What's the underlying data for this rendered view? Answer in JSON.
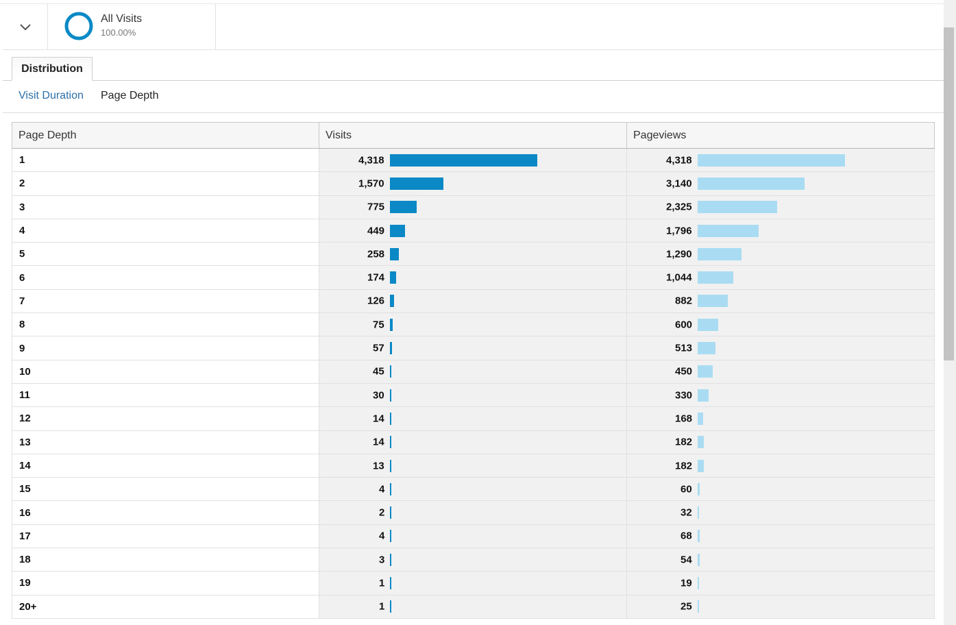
{
  "segment": {
    "name": "All Visits",
    "percent": "100.00%"
  },
  "tab": {
    "label": "Distribution"
  },
  "subtabs": {
    "visit_duration": "Visit Duration",
    "page_depth": "Page Depth"
  },
  "colors": {
    "visits_bar": "#0a89c6",
    "pageviews_bar": "#a9dcf2",
    "donut": "#0a89c6",
    "link": "#2c6fa8"
  },
  "table": {
    "headers": [
      "Page Depth",
      "Visits",
      "Pageviews"
    ],
    "max_value": 4318,
    "rows": [
      {
        "depth": "1",
        "visits": 4318,
        "visits_label": "4,318",
        "pageviews": 4318,
        "pageviews_label": "4,318"
      },
      {
        "depth": "2",
        "visits": 1570,
        "visits_label": "1,570",
        "pageviews": 3140,
        "pageviews_label": "3,140"
      },
      {
        "depth": "3",
        "visits": 775,
        "visits_label": "775",
        "pageviews": 2325,
        "pageviews_label": "2,325"
      },
      {
        "depth": "4",
        "visits": 449,
        "visits_label": "449",
        "pageviews": 1796,
        "pageviews_label": "1,796"
      },
      {
        "depth": "5",
        "visits": 258,
        "visits_label": "258",
        "pageviews": 1290,
        "pageviews_label": "1,290"
      },
      {
        "depth": "6",
        "visits": 174,
        "visits_label": "174",
        "pageviews": 1044,
        "pageviews_label": "1,044"
      },
      {
        "depth": "7",
        "visits": 126,
        "visits_label": "126",
        "pageviews": 882,
        "pageviews_label": "882"
      },
      {
        "depth": "8",
        "visits": 75,
        "visits_label": "75",
        "pageviews": 600,
        "pageviews_label": "600"
      },
      {
        "depth": "9",
        "visits": 57,
        "visits_label": "57",
        "pageviews": 513,
        "pageviews_label": "513"
      },
      {
        "depth": "10",
        "visits": 45,
        "visits_label": "45",
        "pageviews": 450,
        "pageviews_label": "450"
      },
      {
        "depth": "11",
        "visits": 30,
        "visits_label": "30",
        "pageviews": 330,
        "pageviews_label": "330"
      },
      {
        "depth": "12",
        "visits": 14,
        "visits_label": "14",
        "pageviews": 168,
        "pageviews_label": "168"
      },
      {
        "depth": "13",
        "visits": 14,
        "visits_label": "14",
        "pageviews": 182,
        "pageviews_label": "182"
      },
      {
        "depth": "14",
        "visits": 13,
        "visits_label": "13",
        "pageviews": 182,
        "pageviews_label": "182"
      },
      {
        "depth": "15",
        "visits": 4,
        "visits_label": "4",
        "pageviews": 60,
        "pageviews_label": "60"
      },
      {
        "depth": "16",
        "visits": 2,
        "visits_label": "2",
        "pageviews": 32,
        "pageviews_label": "32"
      },
      {
        "depth": "17",
        "visits": 4,
        "visits_label": "4",
        "pageviews": 68,
        "pageviews_label": "68"
      },
      {
        "depth": "18",
        "visits": 3,
        "visits_label": "3",
        "pageviews": 54,
        "pageviews_label": "54"
      },
      {
        "depth": "19",
        "visits": 1,
        "visits_label": "1",
        "pageviews": 19,
        "pageviews_label": "19"
      },
      {
        "depth": "20+",
        "visits": 1,
        "visits_label": "1",
        "pageviews": 25,
        "pageviews_label": "25"
      }
    ]
  }
}
